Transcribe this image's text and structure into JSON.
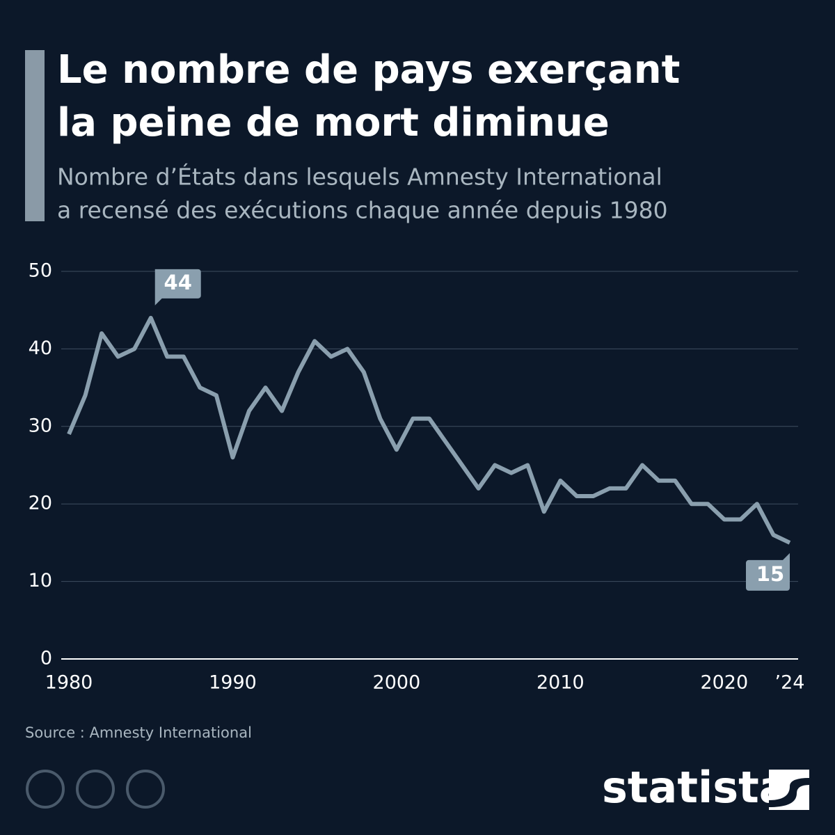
{
  "chart_data": {
    "type": "line",
    "title": [
      "Le nombre de pays exerçant",
      "la peine de mort diminue"
    ],
    "subtitle": [
      "Nombre d’États dans lesquels Amnesty International",
      "a recensé des exécutions chaque année depuis 1980"
    ],
    "x": [
      1980,
      1981,
      1982,
      1983,
      1984,
      1985,
      1986,
      1987,
      1988,
      1989,
      1990,
      1991,
      1992,
      1993,
      1994,
      1995,
      1996,
      1997,
      1998,
      1999,
      2000,
      2001,
      2002,
      2003,
      2004,
      2005,
      2006,
      2007,
      2008,
      2009,
      2010,
      2011,
      2012,
      2013,
      2014,
      2015,
      2016,
      2017,
      2018,
      2019,
      2020,
      2021,
      2022,
      2023,
      2024
    ],
    "values": [
      29,
      34,
      42,
      39,
      40,
      44,
      39,
      39,
      35,
      34,
      26,
      32,
      35,
      32,
      37,
      41,
      39,
      40,
      37,
      31,
      27,
      31,
      31,
      28,
      25,
      22,
      25,
      24,
      25,
      19,
      23,
      21,
      21,
      22,
      22,
      25,
      23,
      23,
      20,
      20,
      18,
      18,
      20,
      16,
      15
    ],
    "value_labels": [
      null,
      null,
      null,
      null,
      null,
      "44",
      null,
      null,
      null,
      null,
      null,
      null,
      null,
      null,
      null,
      null,
      null,
      null,
      null,
      null,
      null,
      null,
      null,
      null,
      null,
      null,
      null,
      null,
      null,
      null,
      null,
      null,
      null,
      null,
      null,
      null,
      null,
      null,
      null,
      null,
      null,
      null,
      null,
      null,
      "15"
    ],
    "color": "#8a9fae",
    "xlim": [
      1980,
      2024
    ],
    "xticks": [
      1980,
      1990,
      2000,
      2010,
      2020,
      {
        "value": 2024,
        "label": "’24"
      }
    ],
    "ylim": [
      0,
      50
    ],
    "yticks": [
      0,
      10,
      20,
      30,
      40,
      50
    ],
    "grid": true,
    "source": "Source : Amnesty International"
  },
  "brand": "statista"
}
